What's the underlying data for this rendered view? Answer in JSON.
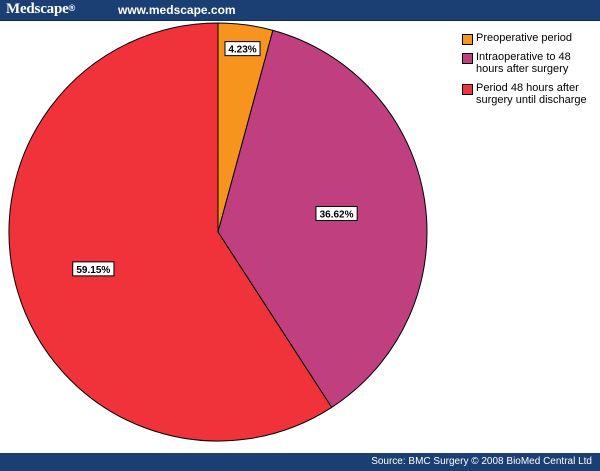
{
  "header": {
    "brand": "Medscape",
    "brand_mark": "®",
    "site": "www.medscape.com"
  },
  "footer": {
    "source": "Source: BMC Surgery © 2008 BioMed Central Ltd"
  },
  "chart_data": {
    "type": "pie",
    "start_angle_deg": 0,
    "direction": "clockwise",
    "legend_position": "top-right",
    "slices": [
      {
        "label": "Preoperative period",
        "value": 4.23,
        "display": "4.23%",
        "color": "#f7941d"
      },
      {
        "label": "Intraoperative to 48 hours after surgery",
        "value": 36.62,
        "display": "36.62%",
        "color": "#bf3f7f"
      },
      {
        "label": "Period 48 hours after surgery until discharge",
        "value": 59.15,
        "display": "59.15%",
        "color": "#f0333b"
      }
    ]
  }
}
